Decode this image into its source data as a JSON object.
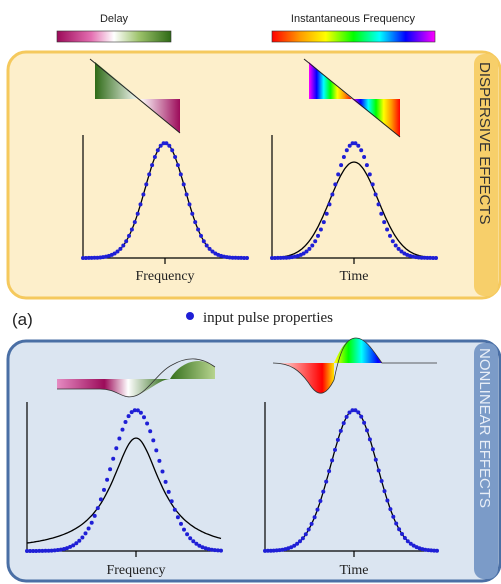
{
  "legend": {
    "delay_label": "Delay",
    "inst_freq_label": "Instantaneous Frequency"
  },
  "panel_a": {
    "side_title": "DISPERSIVE EFFECTS",
    "left_xlabel": "Frequency",
    "right_xlabel": "Time",
    "fill_color": "#fdefcb",
    "border_color": "#f5c95d"
  },
  "panel_b": {
    "side_title": "NONLINEAR EFFECTS",
    "left_xlabel": "Frequency",
    "right_xlabel": "Time",
    "fill_color": "#dbe5f1",
    "border_color": "#4a6fa5"
  },
  "annotations": {
    "panel_label": "(a)",
    "input_marker_label": "input pulse properties",
    "input_marker_color": "#1f1fd6"
  },
  "colors": {
    "delay_gradient": [
      "#9c0b5a",
      "#e46fb1",
      "#ffffff",
      "#9dc36b",
      "#2e6a16"
    ],
    "rainbow_gradient": [
      "#ff0000",
      "#ff9900",
      "#ffff00",
      "#00ff00",
      "#00ffff",
      "#0000ff",
      "#ff00ff"
    ],
    "output_curve": "#000000",
    "input_dots": "#1f1fd6"
  }
}
